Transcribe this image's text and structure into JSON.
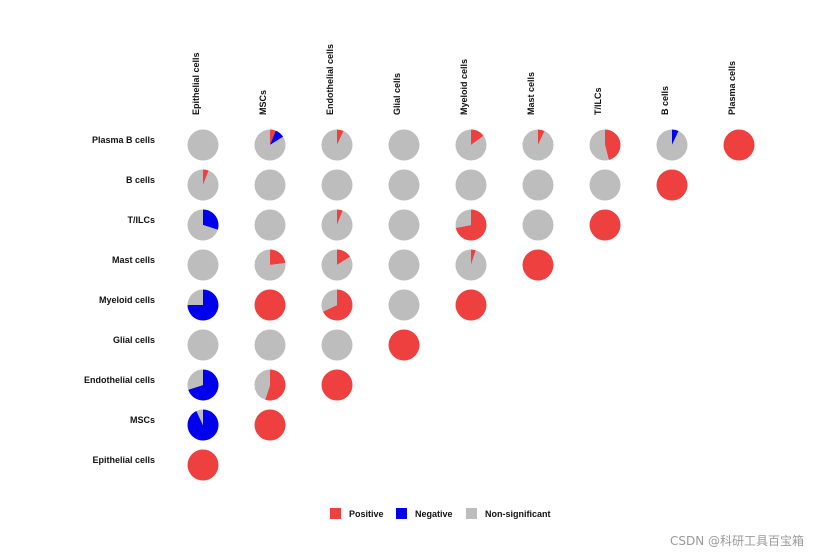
{
  "chart_data": {
    "type": "pie-matrix",
    "title": "",
    "columns": [
      "Epithelial cells",
      "MSCs",
      "Endothelial cells",
      "Glial cells",
      "Myeloid cells",
      "Mast cells",
      "T/ILCs",
      "B cells",
      "Plasma cells"
    ],
    "rows": [
      "Plasma B cells",
      "B cells",
      "T/ILCs",
      "Mast cells",
      "Myeloid cells",
      "Glial cells",
      "Endothelial cells",
      "MSCs",
      "Epithelial cells"
    ],
    "categories": [
      "Positive",
      "Negative",
      "Non-significant"
    ],
    "colors": {
      "Positive": "#ef4040",
      "Negative": "#0000ee",
      "Non-significant": "#bdbdbd"
    },
    "cells": [
      {
        "row": 0,
        "col": 0,
        "positive": 0.0,
        "negative": 0.0,
        "nonsig": 1.0
      },
      {
        "row": 0,
        "col": 1,
        "positive": 0.06,
        "negative": 0.1,
        "nonsig": 0.84
      },
      {
        "row": 0,
        "col": 2,
        "positive": 0.07,
        "negative": 0.0,
        "nonsig": 0.93
      },
      {
        "row": 0,
        "col": 3,
        "positive": 0.0,
        "negative": 0.0,
        "nonsig": 1.0
      },
      {
        "row": 0,
        "col": 4,
        "positive": 0.15,
        "negative": 0.0,
        "nonsig": 0.85
      },
      {
        "row": 0,
        "col": 5,
        "positive": 0.07,
        "negative": 0.0,
        "nonsig": 0.93
      },
      {
        "row": 0,
        "col": 6,
        "positive": 0.46,
        "negative": 0.0,
        "nonsig": 0.54
      },
      {
        "row": 0,
        "col": 7,
        "positive": 0.0,
        "negative": 0.07,
        "nonsig": 0.93
      },
      {
        "row": 0,
        "col": 8,
        "positive": 1.0,
        "negative": 0.0,
        "nonsig": 0.0
      },
      {
        "row": 1,
        "col": 0,
        "positive": 0.06,
        "negative": 0.0,
        "nonsig": 0.94
      },
      {
        "row": 1,
        "col": 1,
        "positive": 0.0,
        "negative": 0.0,
        "nonsig": 1.0
      },
      {
        "row": 1,
        "col": 2,
        "positive": 0.0,
        "negative": 0.0,
        "nonsig": 1.0
      },
      {
        "row": 1,
        "col": 3,
        "positive": 0.0,
        "negative": 0.0,
        "nonsig": 1.0
      },
      {
        "row": 1,
        "col": 4,
        "positive": 0.0,
        "negative": 0.0,
        "nonsig": 1.0
      },
      {
        "row": 1,
        "col": 5,
        "positive": 0.0,
        "negative": 0.0,
        "nonsig": 1.0
      },
      {
        "row": 1,
        "col": 6,
        "positive": 0.0,
        "negative": 0.0,
        "nonsig": 1.0
      },
      {
        "row": 1,
        "col": 7,
        "positive": 1.0,
        "negative": 0.0,
        "nonsig": 0.0
      },
      {
        "row": 2,
        "col": 0,
        "positive": 0.0,
        "negative": 0.3,
        "nonsig": 0.7
      },
      {
        "row": 2,
        "col": 1,
        "positive": 0.0,
        "negative": 0.0,
        "nonsig": 1.0
      },
      {
        "row": 2,
        "col": 2,
        "positive": 0.06,
        "negative": 0.0,
        "nonsig": 0.94
      },
      {
        "row": 2,
        "col": 3,
        "positive": 0.0,
        "negative": 0.0,
        "nonsig": 1.0
      },
      {
        "row": 2,
        "col": 4,
        "positive": 0.72,
        "negative": 0.0,
        "nonsig": 0.28
      },
      {
        "row": 2,
        "col": 5,
        "positive": 0.0,
        "negative": 0.0,
        "nonsig": 1.0
      },
      {
        "row": 2,
        "col": 6,
        "positive": 1.0,
        "negative": 0.0,
        "nonsig": 0.0
      },
      {
        "row": 3,
        "col": 0,
        "positive": 0.0,
        "negative": 0.0,
        "nonsig": 1.0
      },
      {
        "row": 3,
        "col": 1,
        "positive": 0.23,
        "negative": 0.0,
        "nonsig": 0.77
      },
      {
        "row": 3,
        "col": 2,
        "positive": 0.16,
        "negative": 0.0,
        "nonsig": 0.84
      },
      {
        "row": 3,
        "col": 3,
        "positive": 0.0,
        "negative": 0.0,
        "nonsig": 1.0
      },
      {
        "row": 3,
        "col": 4,
        "positive": 0.05,
        "negative": 0.0,
        "nonsig": 0.95
      },
      {
        "row": 3,
        "col": 5,
        "positive": 1.0,
        "negative": 0.0,
        "nonsig": 0.0
      },
      {
        "row": 4,
        "col": 0,
        "positive": 0.0,
        "negative": 0.75,
        "nonsig": 0.25
      },
      {
        "row": 4,
        "col": 1,
        "positive": 1.0,
        "negative": 0.0,
        "nonsig": 0.0
      },
      {
        "row": 4,
        "col": 2,
        "positive": 0.68,
        "negative": 0.0,
        "nonsig": 0.32
      },
      {
        "row": 4,
        "col": 3,
        "positive": 0.0,
        "negative": 0.0,
        "nonsig": 1.0
      },
      {
        "row": 4,
        "col": 4,
        "positive": 1.0,
        "negative": 0.0,
        "nonsig": 0.0
      },
      {
        "row": 5,
        "col": 0,
        "positive": 0.0,
        "negative": 0.0,
        "nonsig": 1.0
      },
      {
        "row": 5,
        "col": 1,
        "positive": 0.0,
        "negative": 0.0,
        "nonsig": 1.0
      },
      {
        "row": 5,
        "col": 2,
        "positive": 0.0,
        "negative": 0.0,
        "nonsig": 1.0
      },
      {
        "row": 5,
        "col": 3,
        "positive": 1.0,
        "negative": 0.0,
        "nonsig": 0.0
      },
      {
        "row": 6,
        "col": 0,
        "positive": 0.0,
        "negative": 0.7,
        "nonsig": 0.3
      },
      {
        "row": 6,
        "col": 1,
        "positive": 0.55,
        "negative": 0.0,
        "nonsig": 0.45
      },
      {
        "row": 6,
        "col": 2,
        "positive": 1.0,
        "negative": 0.0,
        "nonsig": 0.0
      },
      {
        "row": 7,
        "col": 0,
        "positive": 0.0,
        "negative": 0.93,
        "nonsig": 0.07
      },
      {
        "row": 7,
        "col": 1,
        "positive": 1.0,
        "negative": 0.0,
        "nonsig": 0.0
      },
      {
        "row": 8,
        "col": 0,
        "positive": 1.0,
        "negative": 0.0,
        "nonsig": 0.0
      }
    ],
    "legend": {
      "position": "bottom-center",
      "entries": [
        "Positive",
        "Negative",
        "Non-significant"
      ]
    }
  },
  "watermark": "CSDN @科研工具百宝箱"
}
